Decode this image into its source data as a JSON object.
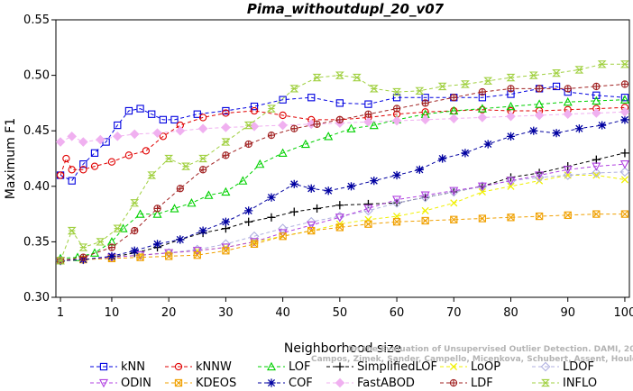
{
  "chart_data": {
    "type": "line",
    "title": "Pima_withoutdupl_20_v07",
    "xlabel": "Neighborhood size",
    "ylabel": "Maximum F1",
    "xlim": [
      1,
      100
    ],
    "ylim": [
      0.3,
      0.55
    ],
    "x_ticks": [
      1,
      10,
      20,
      30,
      40,
      50,
      60,
      70,
      80,
      90,
      100
    ],
    "y_ticks": [
      "0.30",
      "0.35",
      "0.40",
      "0.45",
      "0.50",
      "0.55"
    ],
    "grid": false,
    "legend_position": "bottom",
    "watermark": "Campos, Zimek, Sander, Campello, Micenkova, Schubert, Assent, Houle",
    "watermark_line1": "On the Evaluation of Unsupervised Outlier Detection. DAMI, 2015.",
    "series": [
      {
        "name": "kNN",
        "color": "#0000e0",
        "marker": "square",
        "points": [
          [
            1,
            0.41
          ],
          [
            3,
            0.405
          ],
          [
            5,
            0.42
          ],
          [
            7,
            0.43
          ],
          [
            9,
            0.44
          ],
          [
            11,
            0.455
          ],
          [
            13,
            0.468
          ],
          [
            15,
            0.47
          ],
          [
            17,
            0.465
          ],
          [
            19,
            0.46
          ],
          [
            21,
            0.46
          ],
          [
            25,
            0.465
          ],
          [
            30,
            0.468
          ],
          [
            35,
            0.472
          ],
          [
            40,
            0.478
          ],
          [
            45,
            0.48
          ],
          [
            50,
            0.475
          ],
          [
            55,
            0.474
          ],
          [
            60,
            0.48
          ],
          [
            65,
            0.48
          ],
          [
            70,
            0.48
          ],
          [
            75,
            0.48
          ],
          [
            80,
            0.483
          ],
          [
            85,
            0.488
          ],
          [
            88,
            0.49
          ],
          [
            90,
            0.485
          ],
          [
            95,
            0.482
          ],
          [
            100,
            0.48
          ]
        ]
      },
      {
        "name": "kNNW",
        "color": "#e00000",
        "marker": "circle",
        "points": [
          [
            1,
            0.41
          ],
          [
            2,
            0.425
          ],
          [
            3,
            0.415
          ],
          [
            5,
            0.415
          ],
          [
            7,
            0.418
          ],
          [
            10,
            0.422
          ],
          [
            13,
            0.428
          ],
          [
            16,
            0.432
          ],
          [
            19,
            0.445
          ],
          [
            22,
            0.455
          ],
          [
            26,
            0.462
          ],
          [
            30,
            0.466
          ],
          [
            35,
            0.468
          ],
          [
            40,
            0.464
          ],
          [
            45,
            0.46
          ],
          [
            50,
            0.46
          ],
          [
            55,
            0.462
          ],
          [
            60,
            0.465
          ],
          [
            65,
            0.467
          ],
          [
            70,
            0.468
          ],
          [
            75,
            0.469
          ],
          [
            80,
            0.468
          ],
          [
            85,
            0.468
          ],
          [
            90,
            0.469
          ],
          [
            95,
            0.47
          ],
          [
            100,
            0.471
          ]
        ]
      },
      {
        "name": "LOF",
        "color": "#00d000",
        "marker": "triangle",
        "points": [
          [
            1,
            0.335
          ],
          [
            4,
            0.336
          ],
          [
            7,
            0.34
          ],
          [
            10,
            0.35
          ],
          [
            12,
            0.362
          ],
          [
            15,
            0.375
          ],
          [
            18,
            0.375
          ],
          [
            21,
            0.38
          ],
          [
            24,
            0.385
          ],
          [
            27,
            0.392
          ],
          [
            30,
            0.395
          ],
          [
            33,
            0.405
          ],
          [
            36,
            0.42
          ],
          [
            40,
            0.43
          ],
          [
            44,
            0.438
          ],
          [
            48,
            0.445
          ],
          [
            52,
            0.452
          ],
          [
            56,
            0.455
          ],
          [
            60,
            0.46
          ],
          [
            65,
            0.465
          ],
          [
            70,
            0.468
          ],
          [
            75,
            0.47
          ],
          [
            80,
            0.472
          ],
          [
            85,
            0.474
          ],
          [
            90,
            0.476
          ],
          [
            95,
            0.477
          ],
          [
            100,
            0.478
          ]
        ]
      },
      {
        "name": "SimplifiedLOF",
        "color": "#000000",
        "marker": "plus",
        "points": [
          [
            1,
            0.333
          ],
          [
            5,
            0.334
          ],
          [
            10,
            0.336
          ],
          [
            14,
            0.34
          ],
          [
            18,
            0.345
          ],
          [
            22,
            0.352
          ],
          [
            26,
            0.358
          ],
          [
            30,
            0.362
          ],
          [
            34,
            0.368
          ],
          [
            38,
            0.372
          ],
          [
            42,
            0.377
          ],
          [
            46,
            0.38
          ],
          [
            50,
            0.383
          ],
          [
            55,
            0.384
          ],
          [
            60,
            0.385
          ],
          [
            65,
            0.39
          ],
          [
            70,
            0.395
          ],
          [
            75,
            0.4
          ],
          [
            80,
            0.408
          ],
          [
            85,
            0.412
          ],
          [
            90,
            0.418
          ],
          [
            95,
            0.424
          ],
          [
            100,
            0.43
          ]
        ]
      },
      {
        "name": "LoOP",
        "color": "#f0f000",
        "marker": "x",
        "points": [
          [
            1,
            0.333
          ],
          [
            5,
            0.334
          ],
          [
            10,
            0.336
          ],
          [
            15,
            0.338
          ],
          [
            20,
            0.34
          ],
          [
            25,
            0.342
          ],
          [
            30,
            0.345
          ],
          [
            35,
            0.35
          ],
          [
            40,
            0.355
          ],
          [
            45,
            0.36
          ],
          [
            50,
            0.366
          ],
          [
            55,
            0.37
          ],
          [
            60,
            0.373
          ],
          [
            65,
            0.378
          ],
          [
            70,
            0.385
          ],
          [
            75,
            0.395
          ],
          [
            80,
            0.4
          ],
          [
            85,
            0.405
          ],
          [
            90,
            0.41
          ],
          [
            95,
            0.41
          ],
          [
            100,
            0.406
          ]
        ]
      },
      {
        "name": "LDOF",
        "color": "#b0b0e0",
        "marker": "diamond",
        "points": [
          [
            1,
            0.333
          ],
          [
            5,
            0.334
          ],
          [
            10,
            0.336
          ],
          [
            15,
            0.338
          ],
          [
            20,
            0.34
          ],
          [
            25,
            0.343
          ],
          [
            30,
            0.348
          ],
          [
            35,
            0.355
          ],
          [
            40,
            0.362
          ],
          [
            45,
            0.368
          ],
          [
            50,
            0.373
          ],
          [
            55,
            0.378
          ],
          [
            60,
            0.385
          ],
          [
            65,
            0.39
          ],
          [
            70,
            0.395
          ],
          [
            75,
            0.4
          ],
          [
            80,
            0.405
          ],
          [
            85,
            0.408
          ],
          [
            90,
            0.41
          ],
          [
            95,
            0.412
          ],
          [
            100,
            0.413
          ]
        ]
      },
      {
        "name": "ODIN",
        "color": "#b040e0",
        "marker": "triangle-down",
        "points": [
          [
            1,
            0.333
          ],
          [
            5,
            0.334
          ],
          [
            10,
            0.336
          ],
          [
            15,
            0.338
          ],
          [
            20,
            0.34
          ],
          [
            25,
            0.342
          ],
          [
            30,
            0.345
          ],
          [
            35,
            0.35
          ],
          [
            40,
            0.358
          ],
          [
            45,
            0.365
          ],
          [
            50,
            0.372
          ],
          [
            55,
            0.38
          ],
          [
            60,
            0.388
          ],
          [
            65,
            0.392
          ],
          [
            70,
            0.396
          ],
          [
            75,
            0.4
          ],
          [
            80,
            0.405
          ],
          [
            85,
            0.41
          ],
          [
            90,
            0.415
          ],
          [
            95,
            0.418
          ],
          [
            100,
            0.42
          ]
        ]
      },
      {
        "name": "KDEOS",
        "color": "#f0a000",
        "marker": "square-x",
        "points": [
          [
            1,
            0.333
          ],
          [
            5,
            0.334
          ],
          [
            10,
            0.335
          ],
          [
            15,
            0.336
          ],
          [
            20,
            0.337
          ],
          [
            25,
            0.338
          ],
          [
            30,
            0.342
          ],
          [
            35,
            0.348
          ],
          [
            40,
            0.355
          ],
          [
            45,
            0.36
          ],
          [
            50,
            0.363
          ],
          [
            55,
            0.366
          ],
          [
            60,
            0.368
          ],
          [
            65,
            0.369
          ],
          [
            70,
            0.37
          ],
          [
            75,
            0.371
          ],
          [
            80,
            0.372
          ],
          [
            85,
            0.373
          ],
          [
            90,
            0.374
          ],
          [
            95,
            0.375
          ],
          [
            100,
            0.375
          ]
        ]
      },
      {
        "name": "COF",
        "color": "#0000a0",
        "marker": "star",
        "points": [
          [
            1,
            0.333
          ],
          [
            5,
            0.334
          ],
          [
            10,
            0.337
          ],
          [
            14,
            0.342
          ],
          [
            18,
            0.348
          ],
          [
            22,
            0.352
          ],
          [
            26,
            0.36
          ],
          [
            30,
            0.368
          ],
          [
            34,
            0.378
          ],
          [
            38,
            0.39
          ],
          [
            42,
            0.402
          ],
          [
            45,
            0.398
          ],
          [
            48,
            0.396
          ],
          [
            52,
            0.4
          ],
          [
            56,
            0.405
          ],
          [
            60,
            0.41
          ],
          [
            64,
            0.415
          ],
          [
            68,
            0.425
          ],
          [
            72,
            0.43
          ],
          [
            76,
            0.438
          ],
          [
            80,
            0.445
          ],
          [
            84,
            0.45
          ],
          [
            88,
            0.448
          ],
          [
            92,
            0.452
          ],
          [
            96,
            0.455
          ],
          [
            100,
            0.46
          ]
        ]
      },
      {
        "name": "FastABOD",
        "color": "#f0b0f0",
        "marker": "diamond-filled",
        "points": [
          [
            1,
            0.44
          ],
          [
            3,
            0.445
          ],
          [
            5,
            0.44
          ],
          [
            8,
            0.442
          ],
          [
            11,
            0.445
          ],
          [
            14,
            0.447
          ],
          [
            18,
            0.448
          ],
          [
            22,
            0.45
          ],
          [
            26,
            0.452
          ],
          [
            30,
            0.453
          ],
          [
            35,
            0.454
          ],
          [
            40,
            0.455
          ],
          [
            45,
            0.456
          ],
          [
            50,
            0.457
          ],
          [
            55,
            0.458
          ],
          [
            60,
            0.459
          ],
          [
            65,
            0.46
          ],
          [
            70,
            0.461
          ],
          [
            75,
            0.462
          ],
          [
            80,
            0.463
          ],
          [
            85,
            0.464
          ],
          [
            90,
            0.465
          ],
          [
            95,
            0.466
          ],
          [
            100,
            0.467
          ]
        ]
      },
      {
        "name": "LDF",
        "color": "#a02020",
        "marker": "circle-plus",
        "points": [
          [
            1,
            0.333
          ],
          [
            5,
            0.336
          ],
          [
            10,
            0.345
          ],
          [
            14,
            0.36
          ],
          [
            18,
            0.38
          ],
          [
            22,
            0.398
          ],
          [
            26,
            0.415
          ],
          [
            30,
            0.428
          ],
          [
            34,
            0.438
          ],
          [
            38,
            0.446
          ],
          [
            42,
            0.452
          ],
          [
            46,
            0.456
          ],
          [
            50,
            0.46
          ],
          [
            55,
            0.465
          ],
          [
            60,
            0.47
          ],
          [
            65,
            0.475
          ],
          [
            70,
            0.48
          ],
          [
            75,
            0.485
          ],
          [
            80,
            0.488
          ],
          [
            85,
            0.488
          ],
          [
            90,
            0.488
          ],
          [
            95,
            0.49
          ],
          [
            100,
            0.492
          ]
        ]
      },
      {
        "name": "INFLO",
        "color": "#a0d040",
        "marker": "hourglass",
        "points": [
          [
            1,
            0.333
          ],
          [
            3,
            0.36
          ],
          [
            5,
            0.345
          ],
          [
            8,
            0.35
          ],
          [
            11,
            0.362
          ],
          [
            14,
            0.385
          ],
          [
            17,
            0.41
          ],
          [
            20,
            0.425
          ],
          [
            23,
            0.418
          ],
          [
            26,
            0.425
          ],
          [
            30,
            0.44
          ],
          [
            34,
            0.455
          ],
          [
            38,
            0.47
          ],
          [
            42,
            0.488
          ],
          [
            46,
            0.498
          ],
          [
            50,
            0.5
          ],
          [
            53,
            0.498
          ],
          [
            56,
            0.488
          ],
          [
            60,
            0.485
          ],
          [
            64,
            0.486
          ],
          [
            68,
            0.49
          ],
          [
            72,
            0.492
          ],
          [
            76,
            0.495
          ],
          [
            80,
            0.498
          ],
          [
            84,
            0.5
          ],
          [
            88,
            0.502
          ],
          [
            92,
            0.505
          ],
          [
            96,
            0.51
          ],
          [
            100,
            0.51
          ]
        ]
      }
    ],
    "legend_rows": [
      [
        "kNN",
        "kNNW",
        "LOF",
        "SimplifiedLOF",
        "LoOP",
        "LDOF"
      ],
      [
        "ODIN",
        "KDEOS",
        "COF",
        "FastABOD",
        "LDF",
        "INFLO"
      ]
    ]
  }
}
